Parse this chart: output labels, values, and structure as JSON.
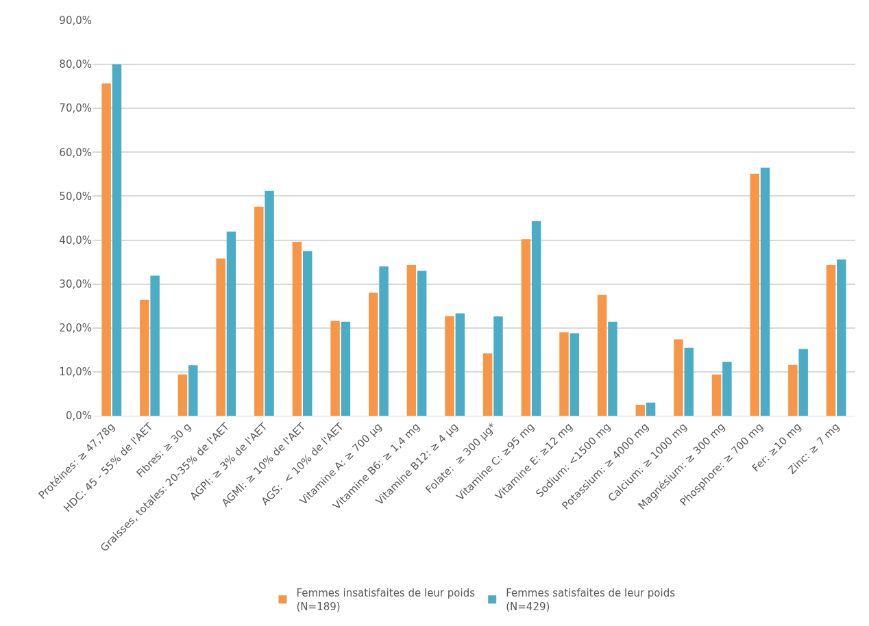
{
  "chart_data": {
    "type": "bar",
    "categories": [
      "Protéines: ≥ 47,78g",
      "HDC: 45 - 55% de l'AET",
      "Fibres: ≥ 30 g",
      "Graisses, totales: 20-35% de l'AET",
      "AGPI: ≥ 3% de l'AET",
      "AGMI: ≥ 10% de l'AET",
      "AGS:  < 10% de l'AET",
      "Vitamine A: ≥ 700 µg",
      "Vitamine B6: ≥ 1,4 mg",
      "Vitamine B12: ≥ 4 µg",
      "Folate:  ≥ 300 µg*",
      "Vitamine C: ≥95 mg",
      "Vitamine E: ≥12 mg",
      "Sodium: <1500 mg",
      "Potassium: ≥ 4000 mg",
      "Calcium: ≥ 1000 mg",
      "Magnésium: ≥ 300 mg",
      "Phosphore: ≥ 700 mg",
      "Fer: ≥10 mg",
      "Zinc: ≥ 7 mg"
    ],
    "series": [
      {
        "name": "Femmes insatisfaites de leur poids (N=189)",
        "color": "#f79646",
        "values": [
          75.7,
          26.4,
          9.4,
          35.8,
          47.6,
          39.6,
          21.6,
          28.0,
          34.3,
          22.7,
          14.2,
          40.2,
          19.0,
          27.5,
          2.5,
          17.4,
          9.4,
          55.1,
          11.6,
          34.3
        ]
      },
      {
        "name": "Femmes satisfaites de leur poids (N=429)",
        "color": "#4bacc6",
        "values": [
          80.0,
          31.9,
          11.5,
          41.9,
          51.2,
          37.5,
          21.4,
          34.0,
          33.0,
          23.3,
          22.6,
          44.3,
          18.8,
          21.4,
          3.0,
          15.5,
          12.3,
          56.5,
          15.2,
          35.6
        ]
      }
    ],
    "ylim": [
      0,
      90
    ],
    "yticks": [
      {
        "value": 0,
        "label": "0,0%"
      },
      {
        "value": 10,
        "label": "10,0%"
      },
      {
        "value": 20,
        "label": "20,0%"
      },
      {
        "value": 30,
        "label": "30,0%"
      },
      {
        "value": 40,
        "label": "40,0%"
      },
      {
        "value": 50,
        "label": "50,0%"
      },
      {
        "value": 60,
        "label": "60,0%"
      },
      {
        "value": 70,
        "label": "70,0%"
      },
      {
        "value": 80,
        "label": "80,0%"
      },
      {
        "value": 90,
        "label": "90,0%"
      }
    ],
    "grid": "y",
    "legend": "bottom"
  }
}
